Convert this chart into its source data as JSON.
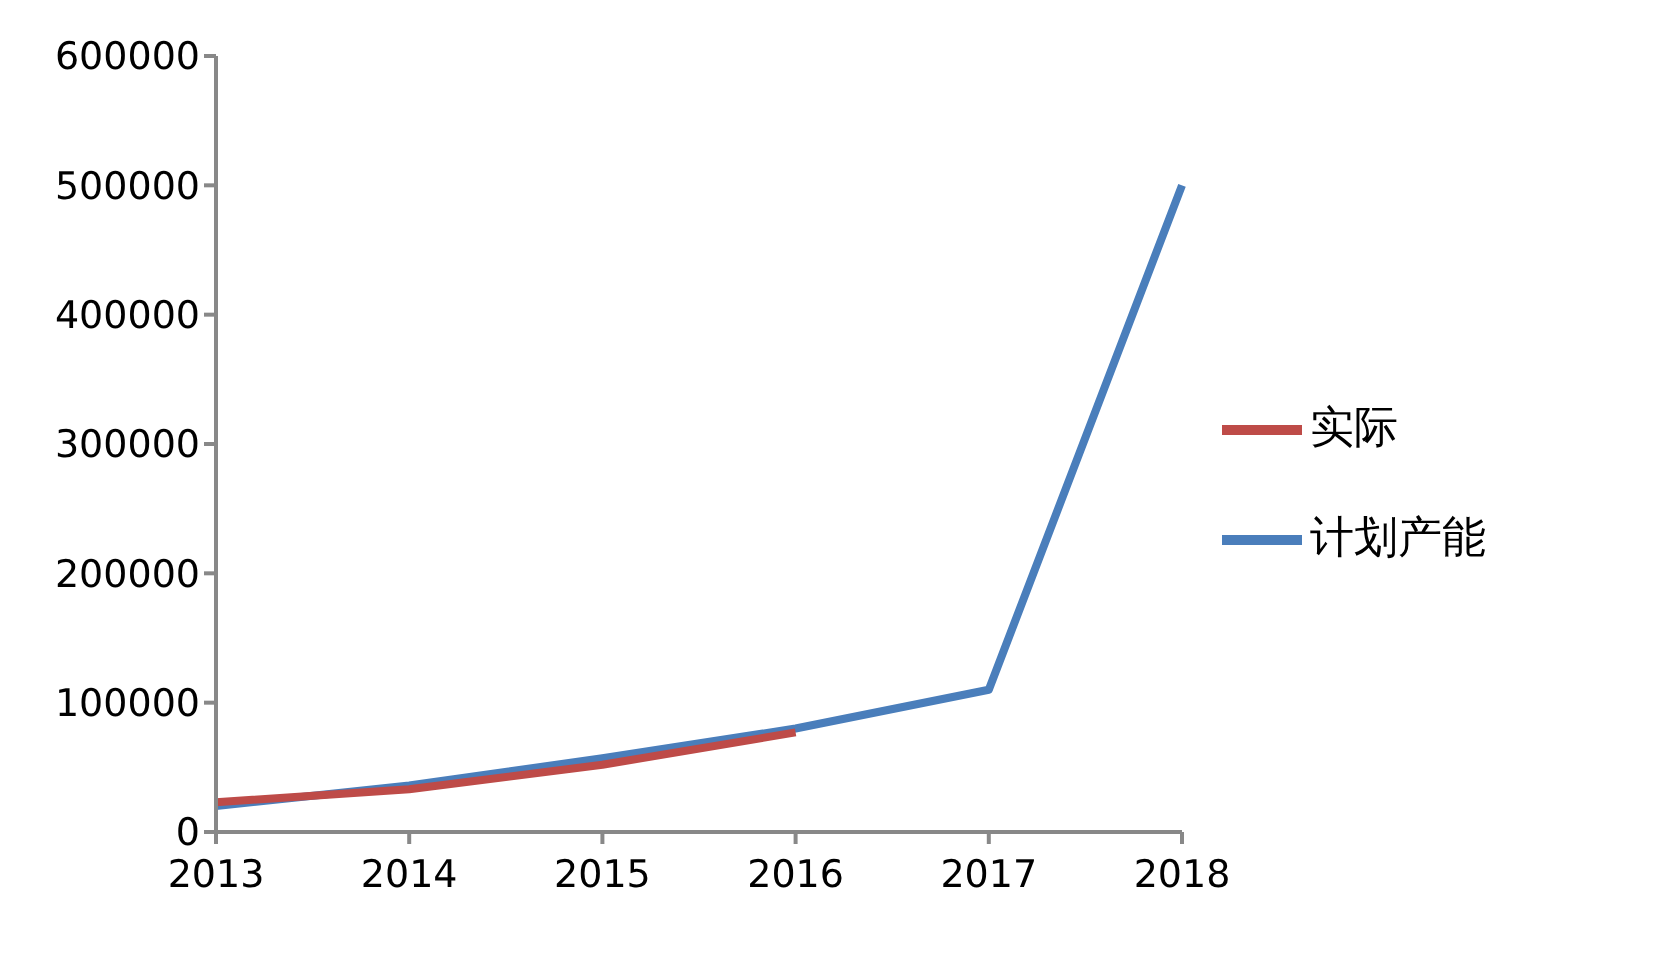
{
  "chart_data": {
    "type": "line",
    "categories": [
      "2013",
      "2014",
      "2015",
      "2016",
      "2017",
      "2018"
    ],
    "series": [
      {
        "name": "计划产能",
        "color": "#4a7ebb",
        "values": [
          20000,
          36000,
          57000,
          80000,
          110000,
          500000
        ]
      },
      {
        "name": "实际",
        "color": "#be4b48",
        "values": [
          23000,
          33000,
          52000,
          77000,
          null,
          null
        ]
      }
    ],
    "ylim": [
      0,
      600000
    ],
    "yticks": [
      0,
      100000,
      200000,
      300000,
      400000,
      500000,
      600000
    ],
    "grid": false,
    "legend": "right",
    "marker": "none",
    "line_style": "solid"
  }
}
